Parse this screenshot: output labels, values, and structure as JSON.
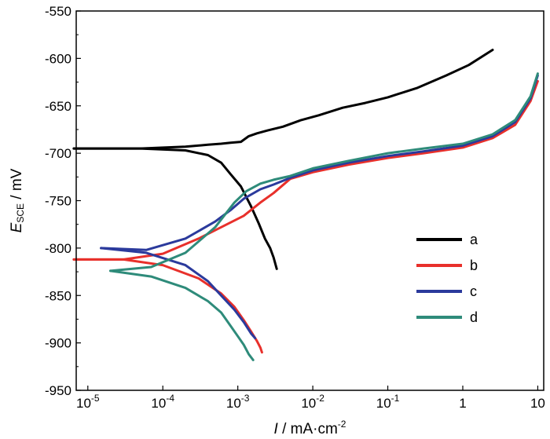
{
  "chart_data": {
    "type": "line",
    "xscale": "log",
    "xlim": [
      7e-06,
      12
    ],
    "ylim": [
      -950,
      -550
    ],
    "xlabel": {
      "var": "I",
      "unit": " / mA·cm",
      "exp": "-2"
    },
    "ylabel": {
      "var": "E",
      "sub": "SCE",
      "unit": " / mV"
    },
    "xticks": [
      {
        "value": 1e-05,
        "base": "10",
        "exp": "-5"
      },
      {
        "value": 0.0001,
        "base": "10",
        "exp": "-4"
      },
      {
        "value": 0.001,
        "base": "10",
        "exp": "-3"
      },
      {
        "value": 0.01,
        "base": "10",
        "exp": "-2"
      },
      {
        "value": 0.1,
        "base": "10",
        "exp": "-1"
      },
      {
        "value": 1,
        "base": "1",
        "exp": ""
      },
      {
        "value": 10,
        "base": "10",
        "exp": ""
      }
    ],
    "yticks": [
      {
        "value": -550,
        "label": "-550"
      },
      {
        "value": -600,
        "label": "-600"
      },
      {
        "value": -650,
        "label": "-650"
      },
      {
        "value": -700,
        "label": "-700"
      },
      {
        "value": -750,
        "label": "-750"
      },
      {
        "value": -800,
        "label": "-800"
      },
      {
        "value": -850,
        "label": "-850"
      },
      {
        "value": -900,
        "label": "-900"
      },
      {
        "value": -950,
        "label": "-950"
      }
    ],
    "legend_position": "right",
    "series": [
      {
        "name": "a",
        "color": "#000000",
        "x": [
          6.5e-06,
          5e-05,
          0.0002,
          0.0004,
          0.0006,
          0.0008,
          0.0011,
          0.0014,
          0.0018,
          0.0025,
          0.004,
          0.007,
          0.012,
          0.025,
          0.05,
          0.1,
          0.25,
          0.6,
          1.2,
          2.5,
          6.5e-06,
          5e-05,
          0.0002,
          0.0004,
          0.0006,
          0.0008,
          0.0011,
          0.0015,
          0.0019,
          0.0023,
          0.0027,
          0.003,
          0.0033
        ],
        "y": [
          -695,
          -695,
          -693,
          -691,
          -690,
          -689,
          -688,
          -682,
          -679,
          -676,
          -672,
          -665,
          -660,
          -652,
          -647,
          -641,
          -631,
          -618,
          -607,
          -591,
          -695,
          -695,
          -697,
          -702,
          -710,
          -722,
          -735,
          -756,
          -774,
          -790,
          -800,
          -810,
          -822
        ],
        "segments": [
          20,
          13
        ]
      },
      {
        "name": "b",
        "color": "#e8302b",
        "x": [
          6.5e-06,
          3e-05,
          0.0001,
          0.0003,
          0.0006,
          0.0012,
          0.002,
          0.003,
          0.005,
          0.01,
          0.03,
          0.1,
          0.3,
          1,
          2.5,
          5,
          8,
          10,
          6.5e-06,
          3e-05,
          0.0001,
          0.0003,
          0.0006,
          0.0009,
          0.0012,
          0.0015,
          0.0018,
          0.002,
          0.0021
        ],
        "y": [
          -812,
          -812,
          -806,
          -790,
          -778,
          -766,
          -752,
          -742,
          -727,
          -720,
          -712,
          -705,
          -700,
          -694,
          -684,
          -670,
          -645,
          -624,
          -812,
          -812,
          -818,
          -832,
          -848,
          -862,
          -876,
          -888,
          -898,
          -905,
          -910
        ],
        "segments": [
          18,
          11
        ]
      },
      {
        "name": "c",
        "color": "#2b3a9c",
        "x": [
          1.5e-05,
          6e-05,
          0.0002,
          0.0005,
          0.0008,
          0.0012,
          0.002,
          0.003,
          0.005,
          0.01,
          0.03,
          0.1,
          0.3,
          1,
          2.5,
          5,
          8,
          10,
          1.5e-05,
          6e-05,
          0.0002,
          0.0004,
          0.0006,
          0.0009,
          0.0012,
          0.0015,
          0.0017
        ],
        "y": [
          -800,
          -802,
          -790,
          -772,
          -760,
          -748,
          -738,
          -733,
          -726,
          -718,
          -710,
          -703,
          -698,
          -692,
          -682,
          -667,
          -642,
          -618,
          -800,
          -805,
          -818,
          -835,
          -850,
          -865,
          -878,
          -890,
          -895
        ],
        "segments": [
          18,
          9
        ]
      },
      {
        "name": "d",
        "color": "#2e8b7a",
        "x": [
          2e-05,
          7e-05,
          0.0002,
          0.0005,
          0.0009,
          0.0013,
          0.002,
          0.003,
          0.005,
          0.01,
          0.03,
          0.1,
          0.3,
          1,
          2.5,
          5,
          8,
          10,
          2e-05,
          7e-05,
          0.0002,
          0.0004,
          0.0006,
          0.0008,
          0.001,
          0.0012,
          0.0014,
          0.0016
        ],
        "y": [
          -824,
          -820,
          -805,
          -778,
          -752,
          -740,
          -732,
          -728,
          -724,
          -716,
          -708,
          -700,
          -695,
          -690,
          -680,
          -665,
          -640,
          -616,
          -824,
          -830,
          -842,
          -856,
          -868,
          -882,
          -893,
          -902,
          -912,
          -918
        ],
        "segments": [
          18,
          10
        ]
      }
    ]
  }
}
